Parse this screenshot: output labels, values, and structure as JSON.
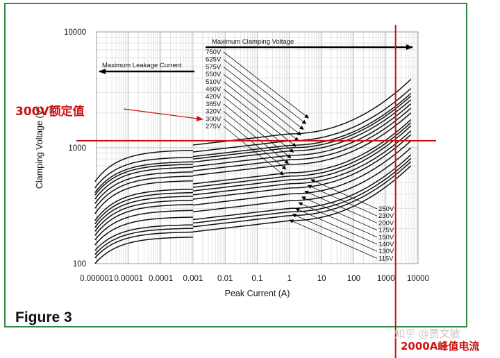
{
  "figure_label": "Figure 3",
  "annotations": {
    "rated_voltage_label": "300V额定值",
    "peak_current_label": "2000A峰值电流",
    "watermark": "知乎 @贾文敏",
    "highlight_color": "#cc1111",
    "frame_color": "#2e8b3e"
  },
  "chart_data": {
    "type": "line",
    "xlabel": "Peak Current (A)",
    "ylabel": "Clamping Voltage (V)",
    "x_scale": "log",
    "y_scale": "log",
    "xlim": [
      1e-06,
      10000
    ],
    "ylim": [
      100,
      10000
    ],
    "x_ticks": [
      "0.000001",
      "0.00001",
      "0.0001",
      "0.001",
      "0.01",
      "0.1",
      "1",
      "10",
      "100",
      "1000",
      "10000"
    ],
    "y_ticks": [
      "100",
      "1000",
      "10000"
    ],
    "grid": true,
    "arrow_labels": {
      "clamping": "Maximum Clamping Voltage",
      "leakage": "Maximum Leakage Current"
    },
    "upper_ratings": [
      "750V",
      "625V",
      "575V",
      "550V",
      "510V",
      "460V",
      "420V",
      "385V",
      "320V",
      "300V",
      "275V"
    ],
    "lower_ratings": [
      "250V",
      "230V",
      "200V",
      "175V",
      "150V",
      "140V",
      "130V",
      "115V"
    ],
    "highlight_lines": {
      "voltage": 1150,
      "current": 2000
    },
    "series": [
      {
        "rating": "750V",
        "clamp_1A": 1320,
        "clamp_6000A": 3900,
        "leak_1uA": 510
      },
      {
        "rating": "625V",
        "clamp_1A": 1150,
        "clamp_6000A": 3250,
        "leak_1uA": 450
      },
      {
        "rating": "575V",
        "clamp_1A": 1050,
        "clamp_6000A": 2950,
        "leak_1uA": 410
      },
      {
        "rating": "550V",
        "clamp_1A": 1000,
        "clamp_6000A": 2800,
        "leak_1uA": 390
      },
      {
        "rating": "510V",
        "clamp_1A": 940,
        "clamp_6000A": 2600,
        "leak_1uA": 360
      },
      {
        "rating": "460V",
        "clamp_1A": 860,
        "clamp_6000A": 2400,
        "leak_1uA": 330
      },
      {
        "rating": "420V",
        "clamp_1A": 790,
        "clamp_6000A": 2200,
        "leak_1uA": 300
      },
      {
        "rating": "385V",
        "clamp_1A": 720,
        "clamp_6000A": 2000,
        "leak_1uA": 270
      },
      {
        "rating": "320V",
        "clamp_1A": 610,
        "clamp_6000A": 1750,
        "leak_1uA": 235
      },
      {
        "rating": "300V",
        "clamp_1A": 570,
        "clamp_6000A": 1650,
        "leak_1uA": 220
      },
      {
        "rating": "275V",
        "clamp_1A": 530,
        "clamp_6000A": 1550,
        "leak_1uA": 205
      },
      {
        "rating": "250V",
        "clamp_1A": 490,
        "clamp_6000A": 1400,
        "leak_1uA": 190
      },
      {
        "rating": "230V",
        "clamp_1A": 450,
        "clamp_6000A": 1300,
        "leak_1uA": 175
      },
      {
        "rating": "200V",
        "clamp_1A": 400,
        "clamp_6000A": 1150,
        "leak_1uA": 160
      },
      {
        "rating": "175V",
        "clamp_1A": 350,
        "clamp_6000A": 1000,
        "leak_1uA": 145
      },
      {
        "rating": "150V",
        "clamp_1A": 300,
        "clamp_6000A": 870,
        "leak_1uA": 130
      },
      {
        "rating": "140V",
        "clamp_1A": 280,
        "clamp_6000A": 810,
        "leak_1uA": 120
      },
      {
        "rating": "130V",
        "clamp_1A": 260,
        "clamp_6000A": 760,
        "leak_1uA": 112
      },
      {
        "rating": "115V",
        "clamp_1A": 235,
        "clamp_6000A": 700,
        "leak_1uA": 100
      }
    ]
  }
}
